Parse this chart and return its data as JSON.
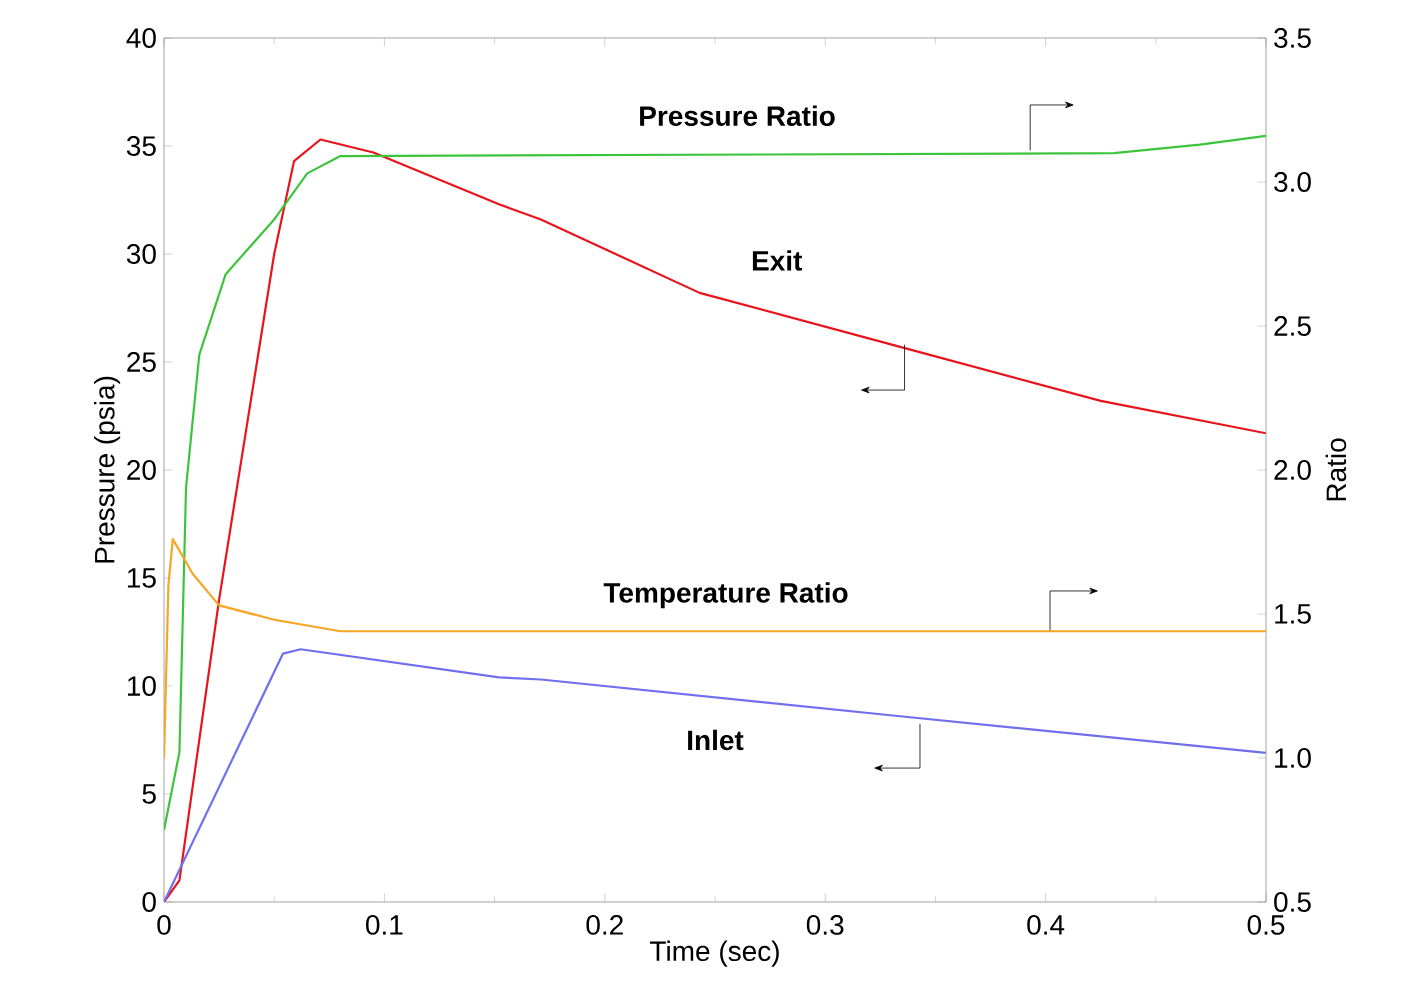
{
  "chart_data": {
    "type": "line",
    "xlabel": "Time (sec)",
    "ylabel": "Pressure (psia)",
    "y2label": "Ratio",
    "xlim": [
      0,
      0.5
    ],
    "xticks": [
      0,
      0.1,
      0.2,
      0.3,
      0.4,
      0.5
    ],
    "ylim": [
      0,
      40
    ],
    "yticks": [
      0,
      5,
      10,
      15,
      20,
      25,
      30,
      35,
      40
    ],
    "y2lim": [
      0.5,
      3.5
    ],
    "y2ticks": [
      {
        "value": 0.5,
        "label": "0.5"
      },
      {
        "value": 1,
        "label": "1.0"
      },
      {
        "value": 1.5,
        "label": "1.5"
      },
      {
        "value": 2,
        "label": "2.0"
      },
      {
        "value": 2.5,
        "label": "2.5"
      },
      {
        "value": 3,
        "label": "3.0"
      },
      {
        "value": 3.5,
        "label": "3.5"
      }
    ],
    "annotations": [
      "Pressure Ratio",
      "Exit",
      "Temperature Ratio",
      "Inlet"
    ],
    "series": [
      {
        "color": "#e8141b",
        "x": [
          0,
          0.007,
          0.025,
          0.05,
          0.059,
          0.071,
          0.095,
          0.152,
          0.171,
          0.243,
          0.334,
          0.425,
          0.5
        ],
        "values": [
          0,
          1.0,
          14,
          30,
          34.3,
          35.3,
          34.7,
          32.3,
          31.6,
          28.2,
          25.7,
          23.2,
          21.7
        ]
      },
      {
        "color": "#6f6ff0",
        "x": [
          0,
          0.054,
          0.062,
          0.152,
          0.171,
          0.334,
          0.5
        ],
        "values": [
          0,
          11.5,
          11.7,
          10.4,
          10.3,
          8.6,
          6.9
        ]
      },
      {
        "axis": "y2",
        "color": "#3cc43c",
        "x": [
          0,
          0.007,
          0.01,
          0.016,
          0.028,
          0.05,
          0.065,
          0.08,
          0.431,
          0.47,
          0.5
        ],
        "values": [
          0.75,
          1.02,
          1.94,
          2.4,
          2.68,
          2.87,
          3.03,
          3.09,
          3.1,
          3.13,
          3.16
        ]
      },
      {
        "axis": "y2",
        "color": "#f5a623",
        "x": [
          0,
          0.002,
          0.004,
          0.013,
          0.025,
          0.05,
          0.08,
          0.5
        ],
        "values": [
          1.0,
          1.6,
          1.76,
          1.64,
          1.53,
          1.48,
          1.44,
          1.44
        ]
      }
    ]
  }
}
